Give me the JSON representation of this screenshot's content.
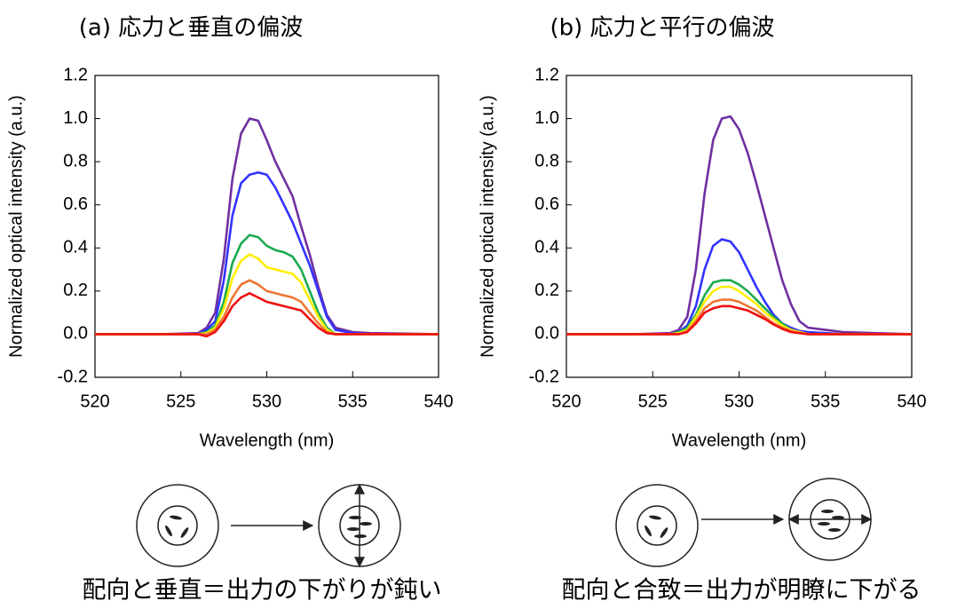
{
  "chart_data": [
    {
      "type": "line",
      "title": "(a) 応力と垂直の偏波",
      "xlabel": "Wavelength (nm)",
      "ylabel": "Normalized optical intensity (a.u.)",
      "x": [
        520,
        524,
        526,
        526.5,
        527,
        527.5,
        528,
        528.5,
        529,
        529.5,
        530,
        530.5,
        531,
        531.5,
        532,
        532.5,
        533,
        533.5,
        534,
        535,
        536,
        540
      ],
      "xlim": [
        520,
        540
      ],
      "xticks": [
        520,
        525,
        530,
        535,
        540
      ],
      "ylim": [
        -0.2,
        1.2
      ],
      "yticks": [
        -0.2,
        {
          "value": 0,
          "label": "0.0"
        },
        0.2,
        0.4,
        0.6,
        0.8,
        {
          "value": 1,
          "label": "1.0"
        },
        1.2
      ],
      "series": [
        {
          "color": "#7030a0",
          "values": [
            0,
            0,
            0.005,
            0.03,
            0.1,
            0.35,
            0.72,
            0.93,
            1.0,
            0.99,
            0.9,
            0.8,
            0.72,
            0.64,
            0.5,
            0.37,
            0.22,
            0.09,
            0.03,
            0.01,
            0.005,
            0
          ]
        },
        {
          "color": "#3333ff",
          "values": [
            0,
            0,
            0,
            0.02,
            0.06,
            0.25,
            0.55,
            0.7,
            0.74,
            0.75,
            0.74,
            0.68,
            0.6,
            0.52,
            0.42,
            0.32,
            0.2,
            0.08,
            0.02,
            0.005,
            0,
            0
          ]
        },
        {
          "color": "#1aaa50",
          "values": [
            0,
            0,
            0,
            0.01,
            0.04,
            0.15,
            0.33,
            0.42,
            0.46,
            0.45,
            0.41,
            0.39,
            0.38,
            0.36,
            0.3,
            0.2,
            0.1,
            0.03,
            0,
            0,
            0,
            0
          ]
        },
        {
          "color": "#ffee00",
          "values": [
            0,
            0,
            0,
            0.005,
            0.03,
            0.12,
            0.26,
            0.34,
            0.37,
            0.35,
            0.31,
            0.3,
            0.29,
            0.28,
            0.24,
            0.16,
            0.08,
            0.02,
            0,
            0,
            0,
            0
          ]
        },
        {
          "color": "#ee7733",
          "values": [
            0,
            0,
            0,
            0,
            0.02,
            0.08,
            0.17,
            0.23,
            0.25,
            0.23,
            0.2,
            0.19,
            0.18,
            0.17,
            0.15,
            0.1,
            0.05,
            0.01,
            0,
            0,
            0,
            0
          ]
        },
        {
          "color": "#ee1111",
          "values": [
            0,
            0,
            0,
            -0.01,
            0.01,
            0.06,
            0.13,
            0.17,
            0.19,
            0.17,
            0.15,
            0.14,
            0.13,
            0.12,
            0.11,
            0.07,
            0.03,
            0.005,
            0,
            0,
            0,
            0
          ]
        }
      ]
    },
    {
      "type": "line",
      "title": "(b) 応力と平行の偏波",
      "xlabel": "Wavelength (nm)",
      "ylabel": "Normalized optical intensity (a.u.)",
      "x": [
        520,
        524,
        526,
        526.5,
        527,
        527.5,
        528,
        528.5,
        529,
        529.5,
        530,
        530.5,
        531,
        531.5,
        532,
        532.5,
        533,
        533.5,
        534,
        535,
        536,
        540
      ],
      "xlim": [
        520,
        540
      ],
      "xticks": [
        520,
        525,
        530,
        535,
        540
      ],
      "ylim": [
        -0.2,
        1.2
      ],
      "yticks": [
        -0.2,
        {
          "value": 0,
          "label": "0.0"
        },
        0.2,
        0.4,
        0.6,
        0.8,
        {
          "value": 1,
          "label": "1.0"
        },
        1.2
      ],
      "series": [
        {
          "color": "#7030a0",
          "values": [
            0,
            0,
            0.005,
            0.02,
            0.08,
            0.3,
            0.65,
            0.9,
            1.0,
            1.01,
            0.95,
            0.84,
            0.7,
            0.55,
            0.4,
            0.25,
            0.14,
            0.06,
            0.03,
            0.02,
            0.01,
            0
          ]
        },
        {
          "color": "#3333ff",
          "values": [
            0,
            0,
            0,
            0.01,
            0.04,
            0.13,
            0.3,
            0.41,
            0.44,
            0.43,
            0.38,
            0.3,
            0.22,
            0.15,
            0.09,
            0.05,
            0.03,
            0.015,
            0.01,
            0.005,
            0,
            0
          ]
        },
        {
          "color": "#1aaa50",
          "values": [
            0,
            0,
            0,
            0.01,
            0.03,
            0.09,
            0.18,
            0.24,
            0.25,
            0.25,
            0.23,
            0.2,
            0.16,
            0.12,
            0.08,
            0.05,
            0.02,
            0.01,
            0,
            0,
            0,
            0
          ]
        },
        {
          "color": "#ffee00",
          "values": [
            0,
            0,
            0,
            0.005,
            0.02,
            0.08,
            0.15,
            0.2,
            0.22,
            0.22,
            0.2,
            0.17,
            0.14,
            0.1,
            0.07,
            0.04,
            0.02,
            0.01,
            0,
            0,
            0,
            0
          ]
        },
        {
          "color": "#ee7733",
          "values": [
            0,
            0,
            0,
            0,
            0.015,
            0.06,
            0.12,
            0.15,
            0.16,
            0.16,
            0.15,
            0.13,
            0.11,
            0.08,
            0.05,
            0.03,
            0.015,
            0.005,
            0,
            0,
            0,
            0
          ]
        },
        {
          "color": "#ee1111",
          "values": [
            0,
            0,
            0,
            0,
            0.01,
            0.05,
            0.1,
            0.12,
            0.13,
            0.13,
            0.12,
            0.11,
            0.09,
            0.07,
            0.045,
            0.025,
            0.01,
            0.005,
            0,
            0,
            0,
            0
          ]
        }
      ]
    }
  ],
  "captions": [
    "配向と垂直＝出力の下がりが鈍い",
    "配向と合致＝出力が明瞭に下がる"
  ]
}
